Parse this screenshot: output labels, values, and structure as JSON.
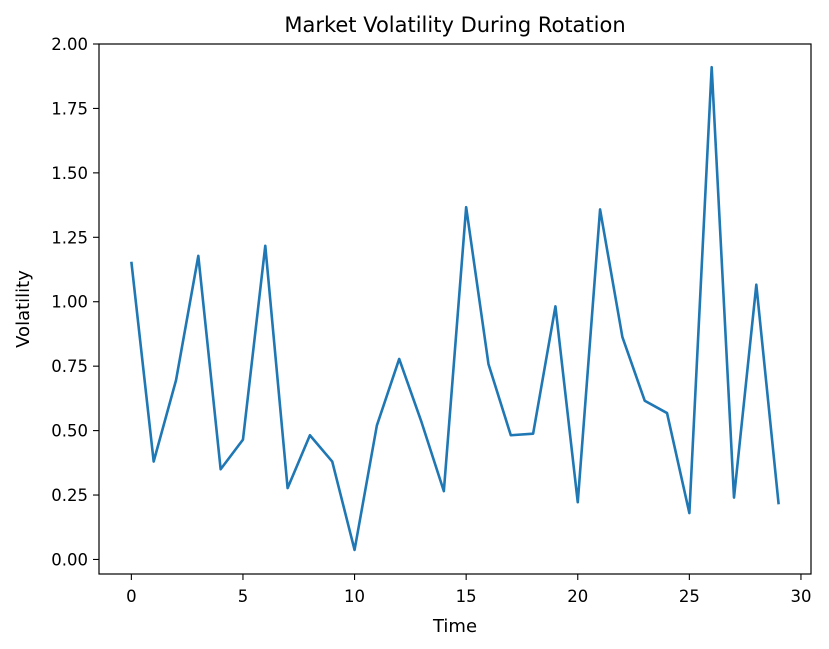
{
  "chart_data": {
    "type": "line",
    "title": "Market Volatility During Rotation",
    "xlabel": "Time",
    "ylabel": "Volatility",
    "xlim": [
      -1.45,
      30.45
    ],
    "ylim": [
      -0.0564,
      2.0
    ],
    "grid": false,
    "x_ticks": [
      0,
      5,
      10,
      15,
      20,
      25,
      30
    ],
    "x_tick_labels": [
      "0",
      "5",
      "10",
      "15",
      "20",
      "25",
      "30"
    ],
    "y_ticks": [
      0.0,
      0.25,
      0.5,
      0.75,
      1.0,
      1.25,
      1.5,
      1.75,
      2.0
    ],
    "y_tick_labels": [
      "0.00",
      "0.25",
      "0.50",
      "0.75",
      "1.00",
      "1.25",
      "1.50",
      "1.75",
      "2.00"
    ],
    "series": [
      {
        "name": "Volatility",
        "color": "#1f77b4",
        "x": [
          0,
          1,
          2,
          3,
          4,
          5,
          6,
          7,
          8,
          9,
          10,
          11,
          12,
          13,
          14,
          15,
          16,
          17,
          18,
          19,
          20,
          21,
          22,
          23,
          24,
          25,
          26,
          27,
          28,
          29
        ],
        "values": [
          1.155,
          0.38,
          0.695,
          1.178,
          0.35,
          0.465,
          1.217,
          0.277,
          0.482,
          0.38,
          0.037,
          0.52,
          0.778,
          0.533,
          0.265,
          1.367,
          0.758,
          0.482,
          0.488,
          0.982,
          0.222,
          1.358,
          0.863,
          0.616,
          0.568,
          0.18,
          1.91,
          0.24,
          1.066,
          0.214
        ]
      }
    ]
  }
}
